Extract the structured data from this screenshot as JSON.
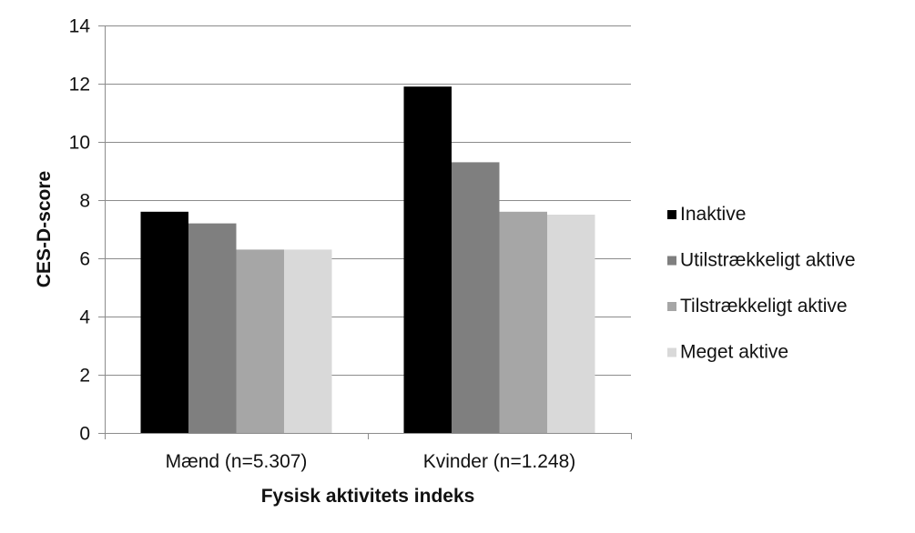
{
  "chart_data": {
    "type": "bar",
    "title": "",
    "xlabel": "Fysisk aktivitets indeks",
    "ylabel": "CES-D-score",
    "ylim": [
      0,
      14
    ],
    "yticks": [
      0,
      2,
      4,
      6,
      8,
      10,
      12,
      14
    ],
    "categories": [
      "Mænd (n=5.307)",
      "Kvinder (n=1.248)"
    ],
    "series": [
      {
        "name": "Inaktive",
        "color": "#000000",
        "values": [
          7.6,
          11.9
        ]
      },
      {
        "name": "Utilstrækkeligt aktive",
        "color": "#7f7f7f",
        "values": [
          7.2,
          9.3
        ]
      },
      {
        "name": "Tilstrækkeligt aktive",
        "color": "#a6a6a6",
        "values": [
          6.3,
          7.6
        ]
      },
      {
        "name": "Meget aktive",
        "color": "#d9d9d9",
        "values": [
          6.3,
          7.5
        ]
      }
    ],
    "grid": true,
    "legend_position": "right"
  }
}
